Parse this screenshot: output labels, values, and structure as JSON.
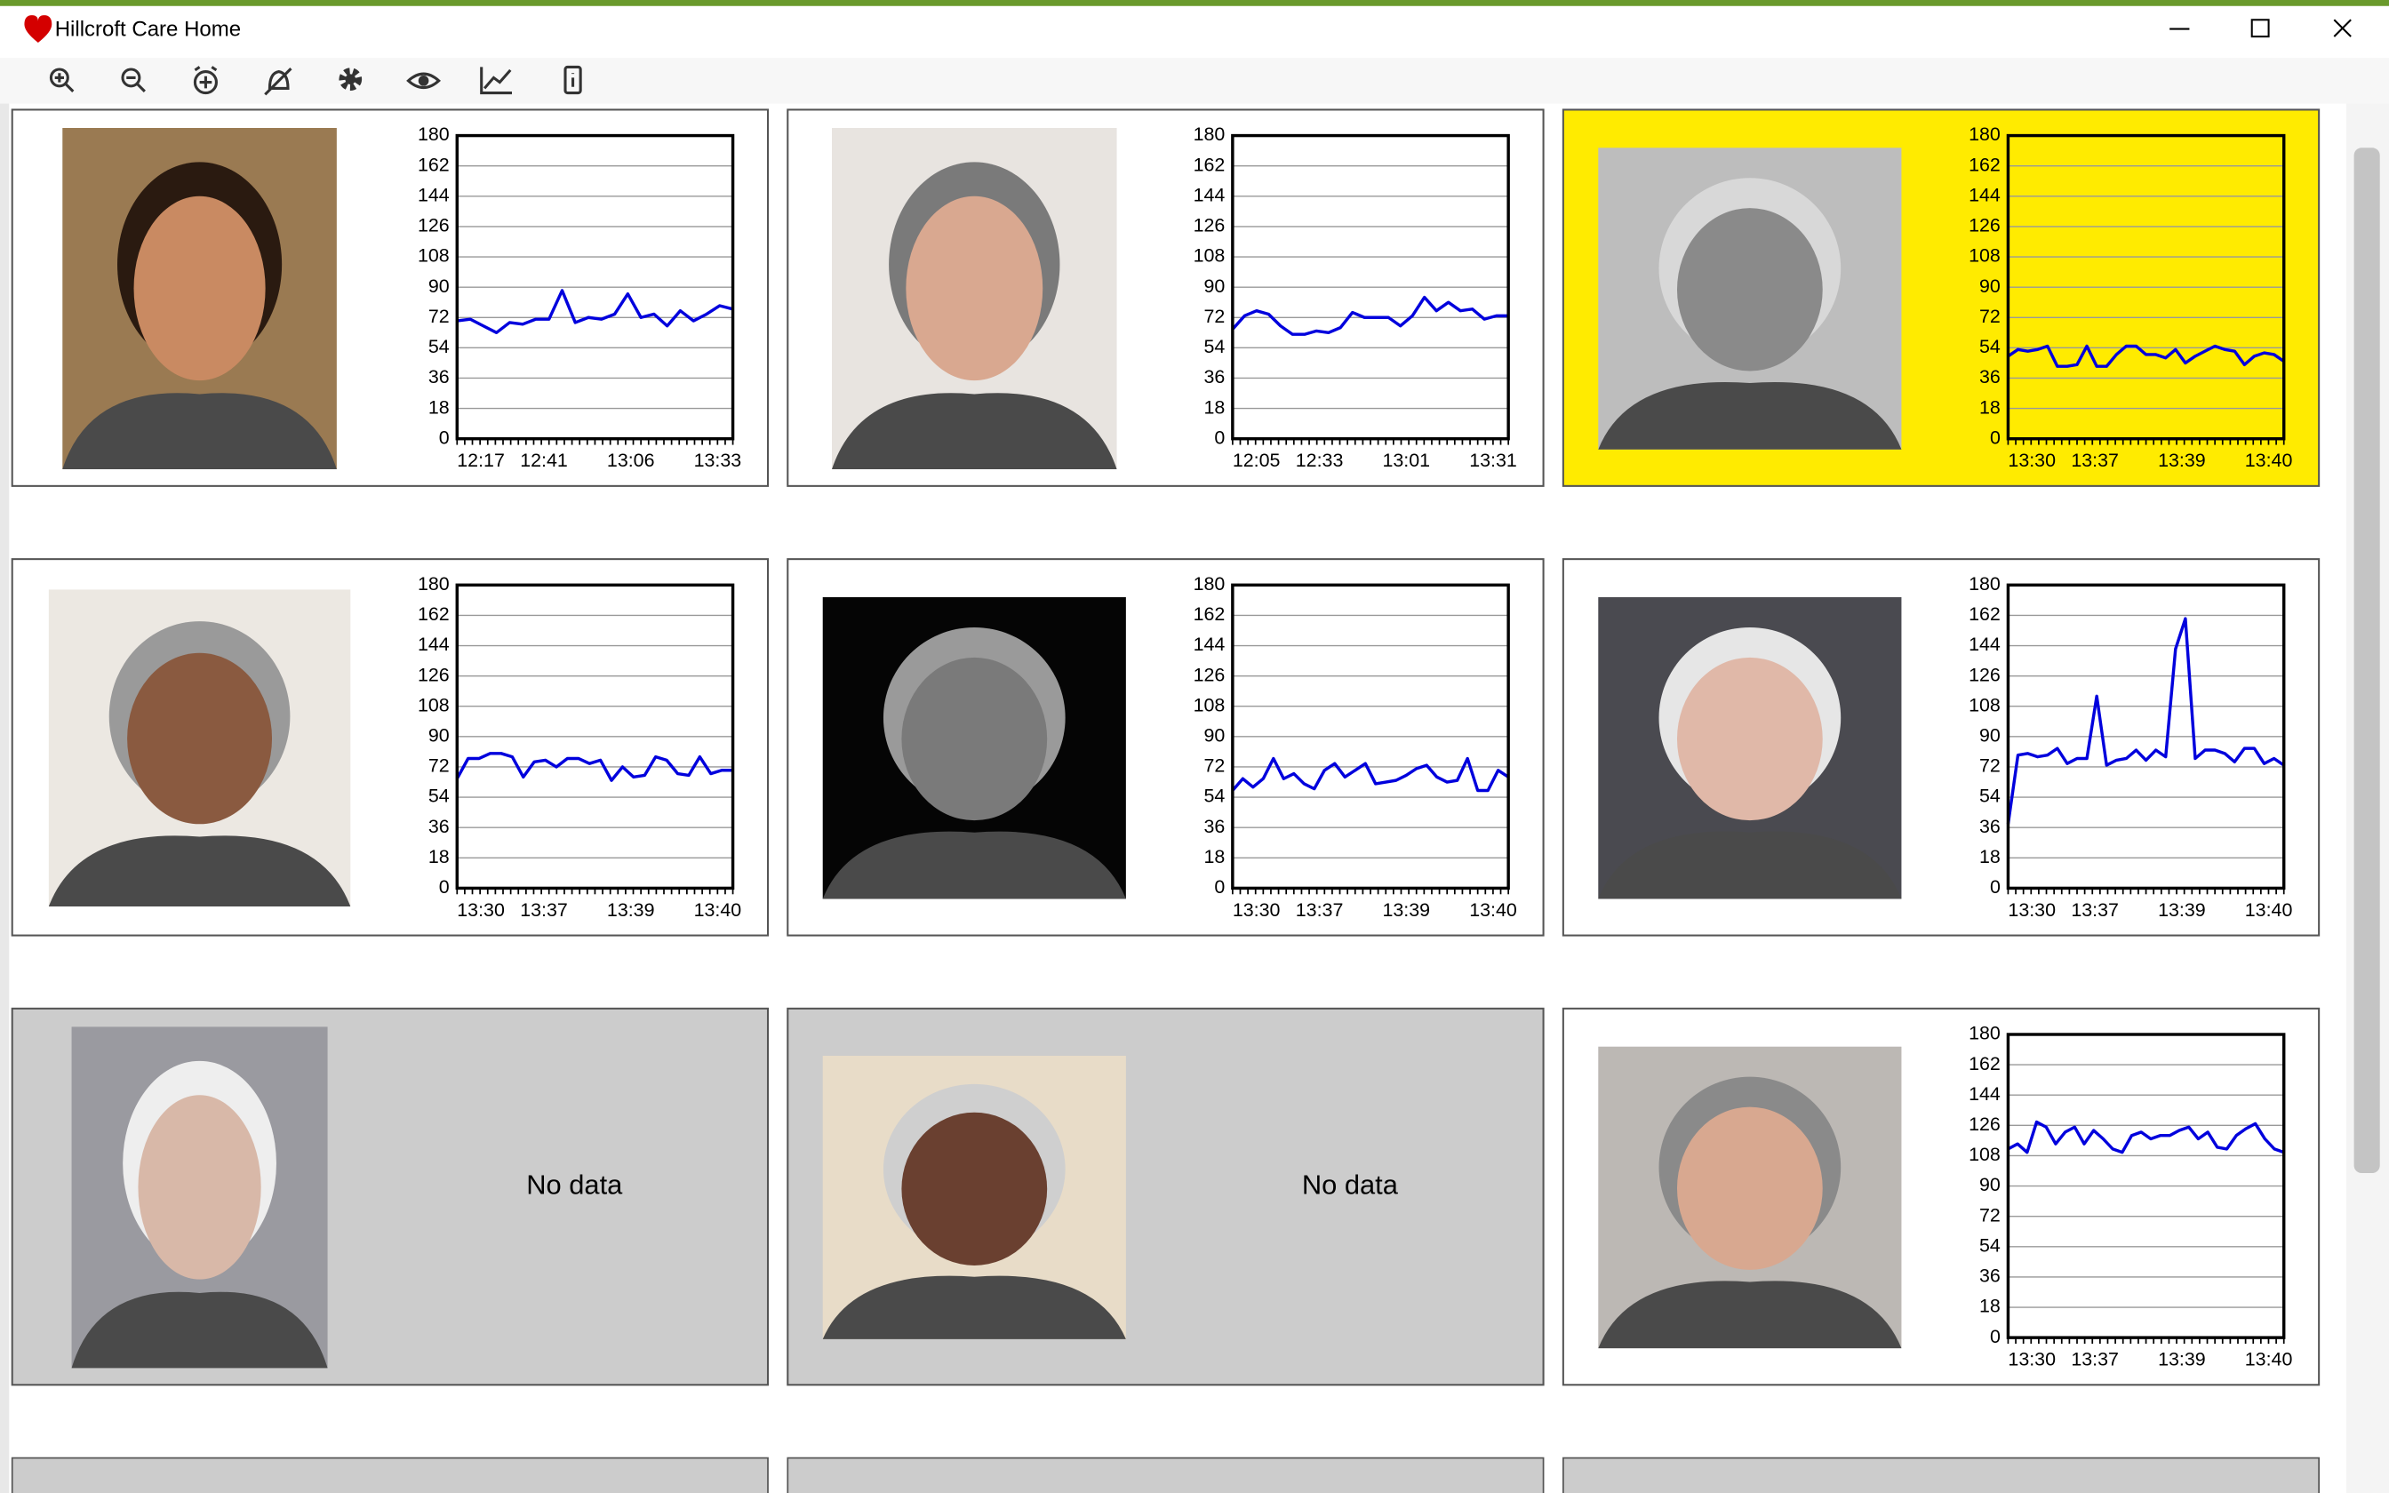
{
  "window": {
    "title": "Hillcroft Care Home"
  },
  "chart_data": [
    {
      "type": "line",
      "background": "#ffffff",
      "xticks": [
        "12:17",
        "12:41",
        "13:06",
        "13:33"
      ],
      "ylim": [
        0,
        180
      ],
      "yticks": [
        0,
        18,
        36,
        54,
        72,
        90,
        108,
        126,
        144,
        162,
        180
      ],
      "grid": true,
      "color": "#0000dd",
      "values": [
        70,
        71,
        67,
        63,
        69,
        68,
        71,
        71,
        88,
        69,
        72,
        71,
        74,
        86,
        72,
        74,
        67,
        76,
        70,
        74,
        79,
        77
      ]
    },
    {
      "type": "line",
      "background": "#ffffff",
      "xticks": [
        "12:05",
        "12:33",
        "13:01",
        "13:31"
      ],
      "ylim": [
        0,
        180
      ],
      "yticks": [
        0,
        18,
        36,
        54,
        72,
        90,
        108,
        126,
        144,
        162,
        180
      ],
      "grid": true,
      "color": "#0000dd",
      "values": [
        65,
        73,
        76,
        74,
        67,
        62,
        62,
        64,
        63,
        66,
        75,
        72,
        72,
        72,
        67,
        73,
        84,
        76,
        81,
        76,
        77,
        71,
        73,
        73
      ]
    },
    {
      "type": "line",
      "background": "#ffeb00",
      "xticks": [
        "13:30",
        "13:37",
        "13:39",
        "13:40"
      ],
      "ylim": [
        0,
        180
      ],
      "yticks": [
        0,
        18,
        36,
        54,
        72,
        90,
        108,
        126,
        144,
        162,
        180
      ],
      "grid": true,
      "color": "#0000dd",
      "values": [
        49,
        53,
        52,
        53,
        55,
        43,
        43,
        44,
        55,
        43,
        43,
        50,
        55,
        55,
        50,
        50,
        48,
        53,
        45,
        49,
        52,
        55,
        53,
        52,
        44,
        49,
        51,
        50,
        46
      ]
    },
    {
      "type": "line",
      "background": "#ffffff",
      "xticks": [
        "13:30",
        "13:37",
        "13:39",
        "13:40"
      ],
      "ylim": [
        0,
        180
      ],
      "yticks": [
        0,
        18,
        36,
        54,
        72,
        90,
        108,
        126,
        144,
        162,
        180
      ],
      "grid": true,
      "color": "#0000dd",
      "values": [
        65,
        77,
        77,
        80,
        80,
        78,
        66,
        75,
        76,
        72,
        77,
        77,
        74,
        76,
        64,
        72,
        66,
        67,
        78,
        76,
        68,
        67,
        78,
        68,
        70,
        70
      ]
    },
    {
      "type": "line",
      "background": "#ffffff",
      "xticks": [
        "13:30",
        "13:37",
        "13:39",
        "13:40"
      ],
      "ylim": [
        0,
        180
      ],
      "yticks": [
        0,
        18,
        36,
        54,
        72,
        90,
        108,
        126,
        144,
        162,
        180
      ],
      "grid": true,
      "color": "#0000dd",
      "values": [
        58,
        65,
        60,
        65,
        77,
        65,
        68,
        62,
        59,
        70,
        74,
        66,
        70,
        74,
        62,
        63,
        64,
        67,
        71,
        73,
        66,
        63,
        64,
        77,
        58,
        58,
        70,
        66
      ]
    },
    {
      "type": "line",
      "background": "#ffffff",
      "xticks": [
        "13:30",
        "13:37",
        "13:39",
        "13:40"
      ],
      "ylim": [
        0,
        180
      ],
      "yticks": [
        0,
        18,
        36,
        54,
        72,
        90,
        108,
        126,
        144,
        162,
        180
      ],
      "grid": true,
      "color": "#0000dd",
      "values": [
        38,
        79,
        80,
        78,
        79,
        83,
        74,
        77,
        77,
        114,
        73,
        76,
        77,
        82,
        76,
        82,
        78,
        142,
        160,
        77,
        82,
        82,
        80,
        75,
        83,
        83,
        74,
        77,
        73
      ]
    },
    {
      "type": "none",
      "background": "#cccccc",
      "message": "No data"
    },
    {
      "type": "none",
      "background": "#cccccc",
      "message": "No data"
    },
    {
      "type": "line",
      "background": "#ffffff",
      "xticks": [
        "13:30",
        "13:37",
        "13:39",
        "13:40"
      ],
      "ylim": [
        0,
        180
      ],
      "yticks": [
        0,
        18,
        36,
        54,
        72,
        90,
        108,
        126,
        144,
        162,
        180
      ],
      "grid": true,
      "color": "#0000dd",
      "values": [
        112,
        115,
        110,
        128,
        125,
        115,
        122,
        125,
        115,
        123,
        118,
        112,
        110,
        120,
        122,
        118,
        120,
        120,
        123,
        125,
        118,
        122,
        113,
        112,
        120,
        124,
        127,
        118,
        112,
        110
      ]
    }
  ]
}
